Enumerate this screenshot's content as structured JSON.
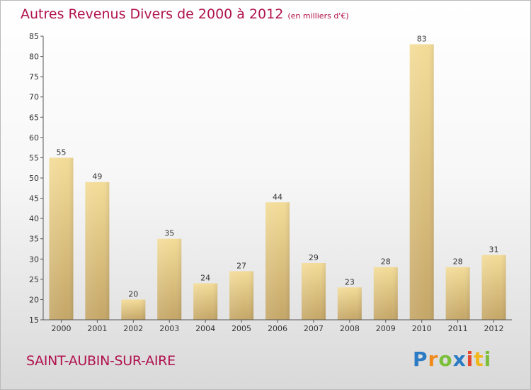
{
  "header": {
    "title": "Autres Revenus Divers de 2000 à 2012",
    "subtitle": "(en milliers d'€)"
  },
  "footer": {
    "place": "SAINT-AUBIN-SUR-AIRE",
    "logo_text": "Proxiti"
  },
  "colors": {
    "title": "#b0124d",
    "bar_light": "#f3dc98",
    "bar_dark": "#c4a667",
    "axis": "#555555"
  },
  "chart_data": {
    "type": "bar",
    "title": "Autres Revenus Divers de 2000 à 2012",
    "subtitle": "(en milliers d'€)",
    "categories": [
      "2000",
      "2001",
      "2002",
      "2003",
      "2004",
      "2005",
      "2006",
      "2007",
      "2008",
      "2009",
      "2010",
      "2011",
      "2012"
    ],
    "values": [
      55,
      49,
      20,
      35,
      24,
      27,
      44,
      29,
      23,
      28,
      83,
      28,
      31
    ],
    "ylim": [
      15,
      85
    ],
    "yticks": [
      15,
      20,
      25,
      30,
      35,
      40,
      45,
      50,
      55,
      60,
      65,
      70,
      75,
      80,
      85
    ],
    "grid": false,
    "data_labels": true
  }
}
